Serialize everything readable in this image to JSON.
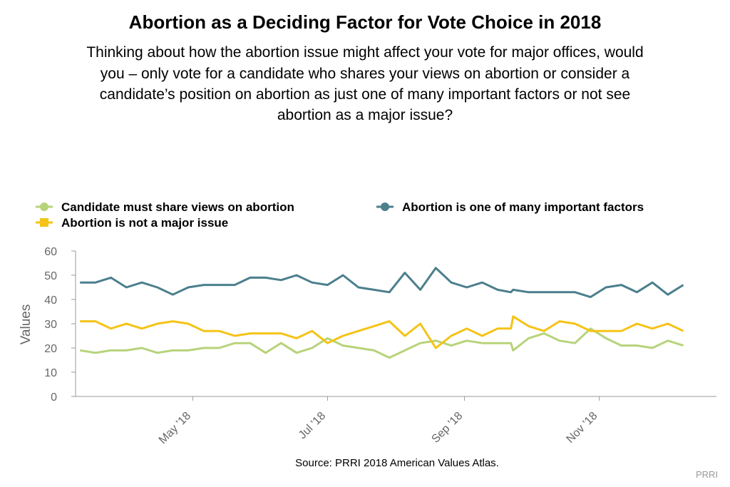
{
  "chart_data": {
    "type": "line",
    "title": "Abortion as a Deciding Factor for Vote Choice in 2018",
    "subtitle": [
      "Thinking about how the abortion issue might affect your vote for major offices, would",
      "you – only vote for a candidate who shares your views on abortion or consider a",
      "candidate’s position on abortion as just one of many important factors or not see",
      "abortion as a major issue?"
    ],
    "ylabel": "Values",
    "xlabel": "",
    "ylim": [
      0,
      60
    ],
    "yticks": [
      0,
      10,
      20,
      30,
      40,
      50,
      60
    ],
    "xlim": [
      "2018-03-09",
      "2018-12-24"
    ],
    "xticks": [
      {
        "date": "2018-05-01",
        "label": "May '18"
      },
      {
        "date": "2018-07-01",
        "label": "Jul '18"
      },
      {
        "date": "2018-09-01",
        "label": "Sep '18"
      },
      {
        "date": "2018-11-01",
        "label": "Nov '18"
      }
    ],
    "legend_position": "top-left",
    "grid": false,
    "x": [
      "2018-03-11",
      "2018-03-18",
      "2018-03-25",
      "2018-04-01",
      "2018-04-08",
      "2018-04-15",
      "2018-04-22",
      "2018-04-29",
      "2018-05-06",
      "2018-05-13",
      "2018-05-20",
      "2018-05-27",
      "2018-06-03",
      "2018-06-10",
      "2018-06-17",
      "2018-06-24",
      "2018-07-01",
      "2018-07-08",
      "2018-07-15",
      "2018-07-22",
      "2018-07-29",
      "2018-08-05",
      "2018-08-12",
      "2018-08-19",
      "2018-08-26",
      "2018-09-02",
      "2018-09-09",
      "2018-09-16",
      "2018-09-22",
      "2018-09-23",
      "2018-09-30",
      "2018-10-07",
      "2018-10-14",
      "2018-10-21",
      "2018-10-28",
      "2018-11-04",
      "2018-11-11",
      "2018-11-18",
      "2018-11-25",
      "2018-12-02",
      "2018-12-09",
      "2018-12-16",
      "2018-12-23"
    ],
    "series": [
      {
        "name": "Candidate must share views on abortion",
        "color": "#b7d37a",
        "marker": "circle",
        "values": [
          19,
          18,
          19,
          19,
          20,
          18,
          19,
          19,
          20,
          20,
          22,
          22,
          18,
          22,
          18,
          20,
          24,
          21,
          20,
          19,
          16,
          19,
          22,
          23,
          21,
          23,
          22,
          22,
          22,
          19,
          24,
          26,
          23,
          22,
          28,
          24,
          21,
          21,
          20,
          23,
          21,
          null,
          null
        ]
      },
      {
        "name": "Abortion is one of many important factors",
        "color": "#4b7f8c",
        "marker": "circle",
        "values": [
          47,
          47,
          49,
          45,
          47,
          45,
          42,
          45,
          46,
          46,
          46,
          49,
          49,
          48,
          50,
          47,
          46,
          50,
          45,
          44,
          43,
          51,
          44,
          53,
          47,
          45,
          47,
          44,
          43,
          44,
          43,
          43,
          43,
          43,
          41,
          45,
          46,
          43,
          47,
          42,
          46,
          null,
          null
        ]
      },
      {
        "name": "Abortion is not a major issue",
        "color": "#f5c316",
        "marker": "square",
        "values": [
          31,
          31,
          28,
          30,
          28,
          30,
          31,
          30,
          27,
          27,
          25,
          26,
          26,
          26,
          24,
          27,
          22,
          25,
          27,
          29,
          31,
          25,
          30,
          20,
          25,
          28,
          25,
          28,
          28,
          33,
          29,
          27,
          31,
          30,
          27,
          27,
          27,
          30,
          28,
          30,
          27,
          null,
          null
        ]
      }
    ]
  },
  "source": "Source: PRRI 2018 American Values Atlas.",
  "credit": "PRRI"
}
